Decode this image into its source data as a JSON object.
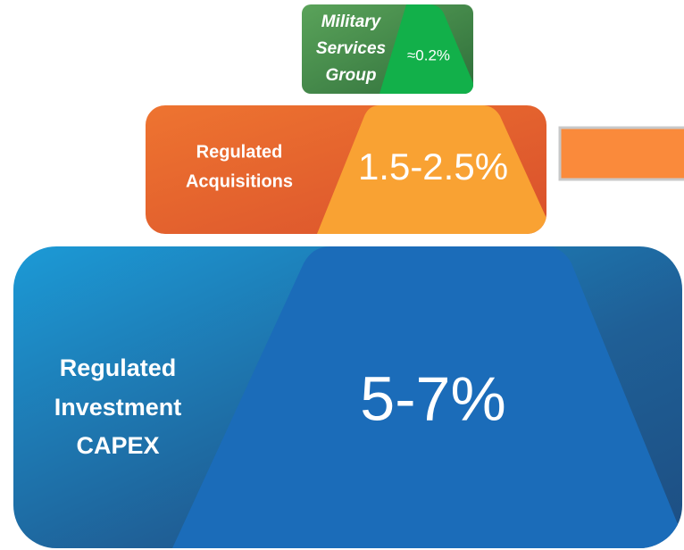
{
  "tiers": [
    {
      "label": [
        "Military",
        "Services",
        "Group"
      ],
      "value": "≈0.2%"
    },
    {
      "label": [
        "Regulated",
        "Acquisitions"
      ],
      "value": "1.5-2.5%"
    },
    {
      "label": [
        "Regulated",
        "Investment",
        "CAPEX"
      ],
      "value": "5-7%"
    }
  ]
}
